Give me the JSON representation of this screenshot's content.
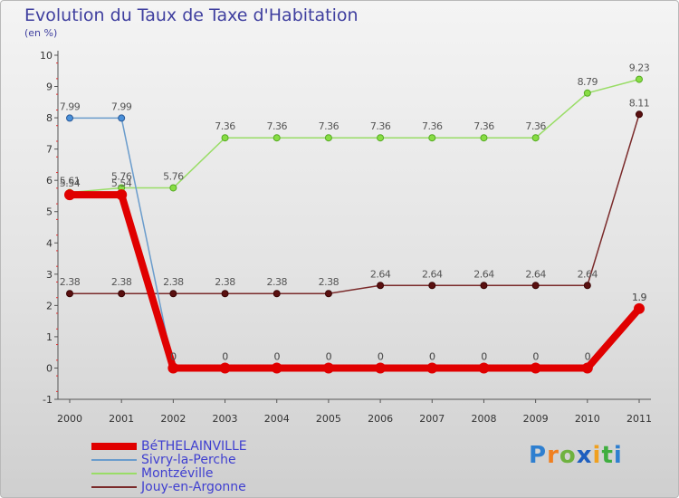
{
  "header": {
    "title": "Evolution du Taux de Taxe d'Habitation",
    "subtitle": "(en %)"
  },
  "logo": {
    "letters": [
      "P",
      "r",
      "o",
      "x",
      "i",
      "t",
      "i"
    ],
    "colors": [
      "#2e7fd0",
      "#f07f1f",
      "#6fb23f",
      "#1f5fbf",
      "#f0a01f",
      "#3fae3f",
      "#2e7fd0"
    ]
  },
  "chart_data": {
    "type": "line",
    "title": "Evolution du Taux de Taxe d'Habitation",
    "ylabel": "(en %)",
    "xlabel": "",
    "ylim": [
      -1,
      10
    ],
    "yticks": [
      "-1",
      "0",
      "1",
      "2",
      "3",
      "4",
      "5",
      "6",
      "7",
      "8",
      "9",
      "10"
    ],
    "categories": [
      "2000",
      "2001",
      "2002",
      "2003",
      "2004",
      "2005",
      "2006",
      "2007",
      "2008",
      "2009",
      "2010",
      "2011"
    ],
    "series": [
      {
        "name": "BéTHELAINVILLE",
        "color": "#e00000",
        "values": [
          5.54,
          5.54,
          0,
          0,
          0,
          0,
          0,
          0,
          0,
          0,
          0,
          1.9
        ],
        "labels": [
          "5.54",
          "5.54",
          "0",
          "0",
          "0",
          "0",
          "0",
          "0",
          "0",
          "0",
          "0",
          "1.9"
        ]
      },
      {
        "name": "Sivry-la-Perche",
        "color": "#6a9ccc",
        "values": [
          7.99,
          7.99,
          0,
          0,
          0,
          0,
          0,
          0,
          0,
          0,
          0,
          1.9
        ],
        "labels": [
          "7.99",
          "7.99",
          "0",
          "0",
          "0",
          "0",
          "0",
          "0",
          "0",
          "0",
          "0",
          "1.9"
        ]
      },
      {
        "name": "Montzéville",
        "color": "#99dd66",
        "values": [
          5.61,
          5.76,
          5.76,
          7.36,
          7.36,
          7.36,
          7.36,
          7.36,
          7.36,
          7.36,
          8.79,
          9.23
        ],
        "labels": [
          "5.61",
          "5.76",
          "5.76",
          "7.36",
          "7.36",
          "7.36",
          "7.36",
          "7.36",
          "7.36",
          "7.36",
          "8.79",
          "9.23"
        ]
      },
      {
        "name": "Jouy-en-Argonne",
        "color": "#7a2a2a",
        "values": [
          2.38,
          2.38,
          2.38,
          2.38,
          2.38,
          2.38,
          2.64,
          2.64,
          2.64,
          2.64,
          2.64,
          8.11
        ],
        "labels": [
          "2.38",
          "2.38",
          "2.38",
          "2.38",
          "2.38",
          "2.38",
          "2.64",
          "2.64",
          "2.64",
          "2.64",
          "2.64",
          "8.11"
        ]
      }
    ]
  }
}
